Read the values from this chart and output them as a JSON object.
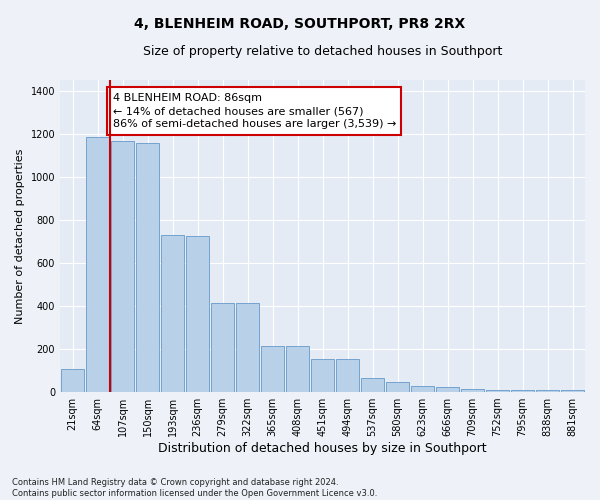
{
  "title": "4, BLENHEIM ROAD, SOUTHPORT, PR8 2RX",
  "subtitle": "Size of property relative to detached houses in Southport",
  "xlabel": "Distribution of detached houses by size in Southport",
  "ylabel": "Number of detached properties",
  "categories": [
    "21sqm",
    "64sqm",
    "107sqm",
    "150sqm",
    "193sqm",
    "236sqm",
    "279sqm",
    "322sqm",
    "365sqm",
    "408sqm",
    "451sqm",
    "494sqm",
    "537sqm",
    "580sqm",
    "623sqm",
    "666sqm",
    "709sqm",
    "752sqm",
    "795sqm",
    "838sqm",
    "881sqm"
  ],
  "values": [
    105,
    1185,
    1165,
    1155,
    730,
    725,
    415,
    415,
    215,
    215,
    155,
    155,
    65,
    45,
    28,
    25,
    15,
    12,
    10,
    10,
    10
  ],
  "bar_color": "#b8d0e8",
  "bar_edgecolor": "#6699cc",
  "vline_color": "#cc0000",
  "vline_x": 1.5,
  "annotation_text": "4 BLENHEIM ROAD: 86sqm\n← 14% of detached houses are smaller (567)\n86% of semi-detached houses are larger (3,539) →",
  "annotation_box_facecolor": "#ffffff",
  "annotation_box_edgecolor": "#cc0000",
  "ylim": [
    0,
    1450
  ],
  "yticks": [
    0,
    200,
    400,
    600,
    800,
    1000,
    1200,
    1400
  ],
  "footer_text": "Contains HM Land Registry data © Crown copyright and database right 2024.\nContains public sector information licensed under the Open Government Licence v3.0.",
  "fig_facecolor": "#eef2f8",
  "axes_facecolor": "#e4ebf5",
  "grid_color": "#ffffff",
  "title_fontsize": 10,
  "subtitle_fontsize": 9,
  "ylabel_fontsize": 8,
  "xlabel_fontsize": 9,
  "annotation_fontsize": 8,
  "tick_fontsize": 7,
  "footer_fontsize": 6
}
